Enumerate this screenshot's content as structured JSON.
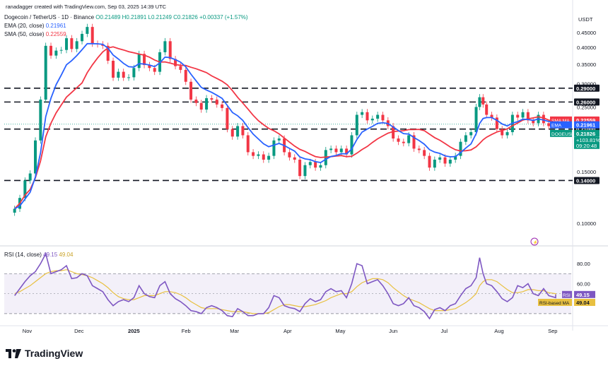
{
  "header": {
    "credit": "ranadagger created with TradingView.com, Sep 03, 2025 14:39 UTC",
    "pair": "Dogecoin / TetherUS · 1D · Binance",
    "ohlc": "O0.21489 H0.21891 L0.21249 C0.21826 +0.00337 (+1.57%)",
    "ema_label": "EMA (20, close)",
    "ema_value": "0.21961",
    "sma_label": "SMA (50, close)",
    "sma_value": "0.22559",
    "rsi_label": "RSI (14, close)",
    "rsi_value": "49.15",
    "rsi_ma_value": "49.04",
    "currency": "USDT"
  },
  "brand": "TradingView",
  "colors": {
    "up": "#089981",
    "down": "#f23645",
    "ema": "#2962ff",
    "sma": "#f23645",
    "rsi": "#7e57c2",
    "rsi_ma": "#e8c040",
    "level": "#131722"
  },
  "chart_data": [
    {
      "type": "candlestick",
      "title": "Dogecoin / TetherUS · 1D · Binance",
      "ylabel": "USDT",
      "y_scale": "log",
      "ylim": [
        0.085,
        0.52
      ],
      "x_ticks": [
        "Nov",
        "Dec",
        "2025",
        "Feb",
        "Mar",
        "Apr",
        "May",
        "Jun",
        "Jul",
        "Aug",
        "Sep"
      ],
      "y_ticks": [
        "0.45000",
        "0.40000",
        "0.35000",
        "0.30000",
        "0.25000",
        "0.20000",
        "0.15000",
        "0.10000"
      ],
      "horizontal_levels": [
        {
          "label": "0.29000",
          "value": 0.29
        },
        {
          "label": "0.26000",
          "value": 0.26
        },
        {
          "label": "0.21000",
          "value": 0.21
        },
        {
          "label": "0.14000",
          "value": 0.14
        }
      ],
      "price_labels": [
        {
          "label": "SMA:MA",
          "value": "0.22559"
        },
        {
          "label": "EMA",
          "value": "0.21961"
        },
        {
          "label": "DOGEUSDT",
          "value": "0.21826"
        },
        {
          "label": "+103.81%",
          "value": ""
        },
        {
          "label": "09:20:48",
          "value": ""
        }
      ],
      "closes": [
        {
          "d": "2024-10-25",
          "c": 0.112
        },
        {
          "d": "2024-10-28",
          "c": 0.122
        },
        {
          "d": "2024-10-31",
          "c": 0.14
        },
        {
          "d": "2024-11-03",
          "c": 0.148
        },
        {
          "d": "2024-11-06",
          "c": 0.192
        },
        {
          "d": "2024-11-09",
          "c": 0.265
        },
        {
          "d": "2024-11-12",
          "c": 0.405
        },
        {
          "d": "2024-11-15",
          "c": 0.375
        },
        {
          "d": "2024-11-18",
          "c": 0.39
        },
        {
          "d": "2024-11-21",
          "c": 0.392
        },
        {
          "d": "2024-11-24",
          "c": 0.43
        },
        {
          "d": "2024-11-27",
          "c": 0.395
        },
        {
          "d": "2024-11-30",
          "c": 0.42
        },
        {
          "d": "2024-12-03",
          "c": 0.445
        },
        {
          "d": "2024-12-06",
          "c": 0.47
        },
        {
          "d": "2024-12-09",
          "c": 0.412
        },
        {
          "d": "2024-12-12",
          "c": 0.41
        },
        {
          "d": "2024-12-15",
          "c": 0.405
        },
        {
          "d": "2024-12-18",
          "c": 0.36
        },
        {
          "d": "2024-12-21",
          "c": 0.315
        },
        {
          "d": "2024-12-24",
          "c": 0.33
        },
        {
          "d": "2024-12-27",
          "c": 0.315
        },
        {
          "d": "2024-12-30",
          "c": 0.316
        },
        {
          "d": "2025-01-02",
          "c": 0.34
        },
        {
          "d": "2025-01-05",
          "c": 0.38
        },
        {
          "d": "2025-01-08",
          "c": 0.348
        },
        {
          "d": "2025-01-11",
          "c": 0.34
        },
        {
          "d": "2025-01-14",
          "c": 0.33
        },
        {
          "d": "2025-01-17",
          "c": 0.385
        },
        {
          "d": "2025-01-20",
          "c": 0.42
        },
        {
          "d": "2025-01-23",
          "c": 0.365
        },
        {
          "d": "2025-01-26",
          "c": 0.345
        },
        {
          "d": "2025-01-29",
          "c": 0.335
        },
        {
          "d": "2025-02-01",
          "c": 0.305
        },
        {
          "d": "2025-02-04",
          "c": 0.265
        },
        {
          "d": "2025-02-07",
          "c": 0.258
        },
        {
          "d": "2025-02-10",
          "c": 0.245
        },
        {
          "d": "2025-02-13",
          "c": 0.268
        },
        {
          "d": "2025-02-16",
          "c": 0.265
        },
        {
          "d": "2025-02-19",
          "c": 0.255
        },
        {
          "d": "2025-02-22",
          "c": 0.248
        },
        {
          "d": "2025-02-25",
          "c": 0.21
        },
        {
          "d": "2025-02-28",
          "c": 0.198
        },
        {
          "d": "2025-03-03",
          "c": 0.215
        },
        {
          "d": "2025-03-06",
          "c": 0.2
        },
        {
          "d": "2025-03-09",
          "c": 0.175
        },
        {
          "d": "2025-03-12",
          "c": 0.17
        },
        {
          "d": "2025-03-15",
          "c": 0.172
        },
        {
          "d": "2025-03-18",
          "c": 0.165
        },
        {
          "d": "2025-03-21",
          "c": 0.17
        },
        {
          "d": "2025-03-24",
          "c": 0.192
        },
        {
          "d": "2025-03-27",
          "c": 0.195
        },
        {
          "d": "2025-03-30",
          "c": 0.175
        },
        {
          "d": "2025-04-02",
          "c": 0.168
        },
        {
          "d": "2025-04-05",
          "c": 0.165
        },
        {
          "d": "2025-04-08",
          "c": 0.145
        },
        {
          "d": "2025-04-11",
          "c": 0.158
        },
        {
          "d": "2025-04-14",
          "c": 0.162
        },
        {
          "d": "2025-04-17",
          "c": 0.155
        },
        {
          "d": "2025-04-20",
          "c": 0.158
        },
        {
          "d": "2025-04-23",
          "c": 0.178
        },
        {
          "d": "2025-04-26",
          "c": 0.18
        },
        {
          "d": "2025-04-29",
          "c": 0.175
        },
        {
          "d": "2025-05-02",
          "c": 0.18
        },
        {
          "d": "2025-05-05",
          "c": 0.172
        },
        {
          "d": "2025-05-08",
          "c": 0.2
        },
        {
          "d": "2025-05-11",
          "c": 0.235
        },
        {
          "d": "2025-05-14",
          "c": 0.24
        },
        {
          "d": "2025-05-17",
          "c": 0.225
        },
        {
          "d": "2025-05-20",
          "c": 0.228
        },
        {
          "d": "2025-05-23",
          "c": 0.235
        },
        {
          "d": "2025-05-26",
          "c": 0.225
        },
        {
          "d": "2025-05-29",
          "c": 0.215
        },
        {
          "d": "2025-06-01",
          "c": 0.195
        },
        {
          "d": "2025-06-04",
          "c": 0.19
        },
        {
          "d": "2025-06-07",
          "c": 0.188
        },
        {
          "d": "2025-06-10",
          "c": 0.2
        },
        {
          "d": "2025-06-13",
          "c": 0.18
        },
        {
          "d": "2025-06-16",
          "c": 0.178
        },
        {
          "d": "2025-06-19",
          "c": 0.17
        },
        {
          "d": "2025-06-22",
          "c": 0.155
        },
        {
          "d": "2025-06-25",
          "c": 0.165
        },
        {
          "d": "2025-06-28",
          "c": 0.168
        },
        {
          "d": "2025-07-01",
          "c": 0.16
        },
        {
          "d": "2025-07-04",
          "c": 0.165
        },
        {
          "d": "2025-07-07",
          "c": 0.17
        },
        {
          "d": "2025-07-10",
          "c": 0.19
        },
        {
          "d": "2025-07-13",
          "c": 0.2
        },
        {
          "d": "2025-07-16",
          "c": 0.205
        },
        {
          "d": "2025-07-19",
          "c": 0.25
        },
        {
          "d": "2025-07-21",
          "c": 0.27
        },
        {
          "d": "2025-07-23",
          "c": 0.255
        },
        {
          "d": "2025-07-25",
          "c": 0.235
        },
        {
          "d": "2025-07-28",
          "c": 0.23
        },
        {
          "d": "2025-07-31",
          "c": 0.21
        },
        {
          "d": "2025-08-03",
          "c": 0.2
        },
        {
          "d": "2025-08-06",
          "c": 0.205
        },
        {
          "d": "2025-08-09",
          "c": 0.235
        },
        {
          "d": "2025-08-12",
          "c": 0.23
        },
        {
          "d": "2025-08-15",
          "c": 0.24
        },
        {
          "d": "2025-08-18",
          "c": 0.225
        },
        {
          "d": "2025-08-21",
          "c": 0.22
        },
        {
          "d": "2025-08-24",
          "c": 0.235
        },
        {
          "d": "2025-08-27",
          "c": 0.22
        },
        {
          "d": "2025-08-30",
          "c": 0.215
        },
        {
          "d": "2025-09-03",
          "c": 0.21826
        }
      ]
    },
    {
      "type": "line",
      "title": "RSI (14, close)",
      "ylim": [
        20,
        95
      ],
      "y_ticks": [
        "80.00",
        "60.00"
      ],
      "bands": [
        70,
        30
      ],
      "series": [
        {
          "name": "RSI",
          "values": [
            48,
            55,
            62,
            68,
            72,
            80,
            90,
            70,
            72,
            74,
            78,
            65,
            66,
            70,
            68,
            58,
            55,
            52,
            44,
            38,
            42,
            44,
            42,
            46,
            58,
            50,
            47,
            46,
            58,
            62,
            50,
            45,
            42,
            38,
            33,
            32,
            30,
            36,
            38,
            36,
            33,
            28,
            27,
            35,
            32,
            28,
            28,
            30,
            30,
            36,
            48,
            46,
            38,
            36,
            35,
            32,
            40,
            45,
            42,
            44,
            52,
            55,
            52,
            53,
            46,
            60,
            80,
            78,
            60,
            62,
            64,
            58,
            50,
            40,
            38,
            40,
            46,
            38,
            36,
            32,
            25,
            34,
            36,
            33,
            38,
            40,
            48,
            55,
            58,
            66,
            86,
            70,
            60,
            58,
            52,
            45,
            42,
            46,
            58,
            56,
            60,
            50,
            48,
            55,
            48,
            46,
            49.15
          ]
        },
        {
          "name": "RSI-based MA",
          "values": [
            50,
            52,
            55,
            58,
            62,
            66,
            70,
            72,
            73,
            73,
            74,
            72,
            70,
            69,
            68,
            66,
            63,
            60,
            56,
            51,
            47,
            45,
            44,
            44,
            46,
            48,
            48,
            48,
            50,
            52,
            52,
            51,
            49,
            46,
            42,
            39,
            36,
            35,
            35,
            35,
            34,
            33,
            32,
            32,
            32,
            31,
            30,
            30,
            30,
            31,
            34,
            37,
            39,
            39,
            38,
            37,
            37,
            38,
            39,
            41,
            43,
            46,
            48,
            50,
            50,
            52,
            57,
            61,
            63,
            65,
            65,
            64,
            61,
            56,
            52,
            48,
            45,
            43,
            41,
            38,
            35,
            33,
            33,
            33,
            34,
            35,
            38,
            41,
            45,
            50,
            58,
            62,
            64,
            64,
            62,
            58,
            54,
            51,
            51,
            52,
            54,
            54,
            53,
            53,
            51,
            50,
            49.04
          ]
        }
      ]
    }
  ]
}
